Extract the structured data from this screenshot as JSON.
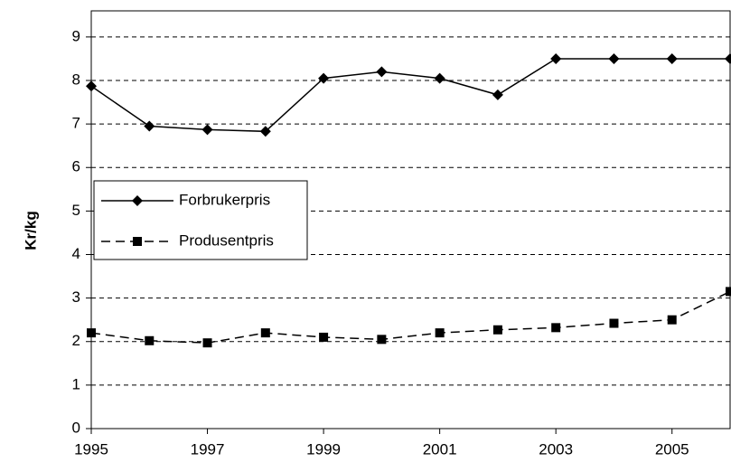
{
  "chart_data": {
    "type": "line",
    "y_label": "Kr/kg",
    "x": [
      1995,
      1996,
      1997,
      1998,
      1999,
      2000,
      2001,
      2002,
      2003,
      2004,
      2005,
      2006
    ],
    "series": [
      {
        "name": "Forbrukerpris",
        "color": "#000000",
        "line_style": "solid",
        "marker": "diamond",
        "values": [
          7.87,
          6.95,
          6.87,
          6.83,
          8.05,
          8.2,
          8.05,
          7.67,
          8.5,
          8.5,
          8.5,
          8.5
        ]
      },
      {
        "name": "Produsentpris",
        "color": "#000000",
        "line_style": "dashed",
        "marker": "square",
        "values": [
          2.2,
          2.02,
          1.97,
          2.2,
          2.1,
          2.05,
          2.2,
          2.27,
          2.32,
          2.42,
          2.5,
          3.15
        ]
      }
    ],
    "xlim": [
      1995,
      2006
    ],
    "xticks": [
      1995,
      1997,
      1999,
      2001,
      2003,
      2005
    ],
    "ylim": [
      0,
      9.6
    ],
    "yticks": [
      0,
      1,
      2,
      3,
      4,
      5,
      6,
      7,
      8,
      9
    ],
    "grid": true,
    "legend": "left"
  }
}
